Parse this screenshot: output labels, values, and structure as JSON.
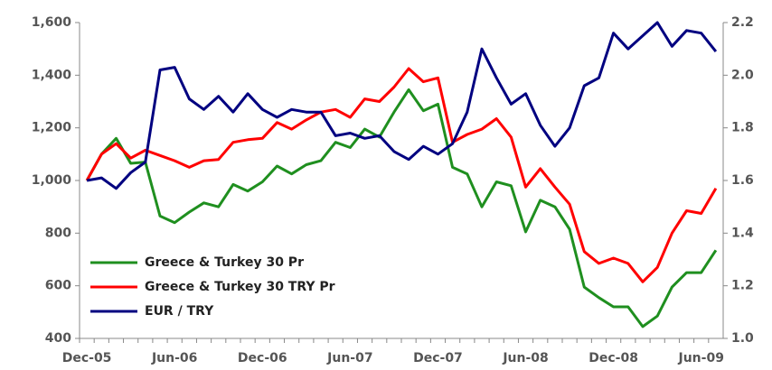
{
  "chart_data": {
    "type": "line",
    "categories": [
      "Dec-05",
      null,
      null,
      null,
      null,
      null,
      "Jun-06",
      null,
      null,
      null,
      null,
      null,
      "Dec-06",
      null,
      null,
      null,
      null,
      null,
      "Jun-07",
      null,
      null,
      null,
      null,
      null,
      "Dec-07",
      null,
      null,
      null,
      null,
      null,
      "Jun-08",
      null,
      null,
      null,
      null,
      null,
      "Dec-08",
      null,
      null,
      null,
      null,
      null,
      "Jun-09",
      null
    ],
    "series": [
      {
        "name": "Greece & Turkey 30 Pr",
        "color": "#1f8f1f",
        "values": [
          1000,
          1100,
          1160,
          1065,
          1070,
          865,
          840,
          880,
          915,
          900,
          985,
          960,
          995,
          1055,
          1025,
          1060,
          1075,
          1145,
          1125,
          1195,
          1165,
          1260,
          1345,
          1265,
          1290,
          1050,
          1025,
          900,
          995,
          980,
          805,
          925,
          900,
          815,
          595,
          555,
          520,
          520,
          445,
          485,
          595,
          650,
          650,
          735
        ]
      },
      {
        "name": "Greece & Turkey 30 TRY Pr",
        "color": "#ff0000",
        "values": [
          1000,
          1100,
          1140,
          1085,
          1115,
          1095,
          1075,
          1050,
          1075,
          1080,
          1145,
          1155,
          1160,
          1220,
          1195,
          1230,
          1260,
          1270,
          1240,
          1310,
          1300,
          1355,
          1425,
          1375,
          1390,
          1145,
          1175,
          1195,
          1235,
          1165,
          975,
          1045,
          975,
          910,
          730,
          685,
          705,
          685,
          615,
          670,
          800,
          885,
          875,
          970
        ]
      },
      {
        "name": "EUR / TRY",
        "color": "#000080",
        "axis": "y2",
        "values": [
          1.6,
          1.61,
          1.57,
          1.63,
          1.67,
          2.02,
          2.03,
          1.91,
          1.87,
          1.92,
          1.86,
          1.93,
          1.87,
          1.84,
          1.87,
          1.86,
          1.86,
          1.77,
          1.78,
          1.76,
          1.77,
          1.71,
          1.68,
          1.73,
          1.7,
          1.74,
          1.86,
          2.1,
          1.99,
          1.89,
          1.93,
          1.81,
          1.73,
          1.8,
          1.96,
          1.99,
          2.16,
          2.1,
          2.15,
          2.2,
          2.11,
          2.17,
          2.16,
          2.09
        ]
      }
    ],
    "ylim": [
      400,
      1600
    ],
    "yticks": [
      400,
      600,
      800,
      {
        "value": 1000,
        "label": "1,000"
      },
      {
        "value": 1200,
        "label": "1,200"
      },
      {
        "value": 1400,
        "label": "1,400"
      },
      {
        "value": 1600,
        "label": "1,600"
      }
    ],
    "y2lim": [
      1.0,
      2.2
    ],
    "y2ticks": [
      {
        "value": 1.0,
        "label": "1.0"
      },
      1.2,
      1.4,
      1.6,
      1.8,
      {
        "value": 2.0,
        "label": "2.0"
      },
      2.2
    ],
    "legend": "lower left"
  }
}
